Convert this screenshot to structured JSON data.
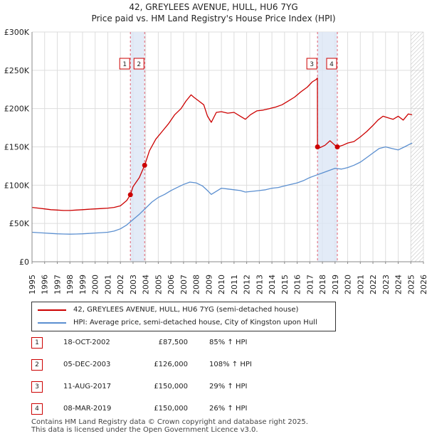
{
  "title_line1": "42, GREYLEES AVENUE, HULL, HU6 7YG",
  "title_line2": "Price paid vs. HM Land Registry's House Price Index (HPI)",
  "colors": {
    "property_line": "#cc0000",
    "hpi_line": "#5b8fd0",
    "shade": "#dce6f5",
    "marker_dash": "#e06070",
    "grid": "#dddddd",
    "badge_border": "#cc0000"
  },
  "chart_data": {
    "type": "line",
    "title": "Price paid vs. HM Land Registry's House Price Index (HPI)",
    "xlim": [
      1995,
      2026
    ],
    "ylim": [
      0,
      300000
    ],
    "y_ticks": [
      0,
      50000,
      100000,
      150000,
      200000,
      250000,
      300000
    ],
    "y_tick_labels": [
      "£0",
      "£50K",
      "£100K",
      "£150K",
      "£200K",
      "£250K",
      "£300K"
    ],
    "x_ticks": [
      1995,
      1996,
      1997,
      1998,
      1999,
      2000,
      2001,
      2002,
      2003,
      2004,
      2005,
      2006,
      2007,
      2008,
      2009,
      2010,
      2011,
      2012,
      2013,
      2014,
      2015,
      2016,
      2017,
      2018,
      2019,
      2020,
      2021,
      2022,
      2023,
      2024,
      2025,
      2026
    ],
    "x_tick_labels": [
      "1995",
      "1996",
      "1997",
      "1998",
      "1999",
      "2000",
      "2001",
      "2002",
      "2003",
      "2004",
      "2005",
      "2006",
      "2007",
      "2008",
      "2009",
      "2010",
      "2011",
      "2012",
      "2013",
      "2014",
      "2015",
      "2016",
      "2017",
      "2018",
      "2019",
      "2020",
      "2021",
      "2022",
      "2023",
      "2024",
      "2025",
      "2026"
    ],
    "shaded_ranges": [
      [
        2002.8,
        2003.92
      ],
      [
        2017.61,
        2019.18
      ]
    ],
    "future_hatch_start": 2025.0,
    "series": [
      {
        "name": "42, GREYLEES AVENUE, HULL, HU6 7YG (semi-detached house)",
        "color": "#cc0000",
        "x": [
          1995,
          1995.5,
          1996,
          1996.5,
          1997,
          1997.5,
          1998,
          1998.5,
          1999,
          1999.5,
          2000,
          2000.5,
          2001,
          2001.5,
          2002,
          2002.5,
          2002.79,
          2003,
          2003.5,
          2003.92,
          2004.3,
          2004.8,
          2005.3,
          2005.8,
          2006.3,
          2006.8,
          2007.2,
          2007.6,
          2007.8,
          2008.2,
          2008.6,
          2008.9,
          2009.2,
          2009.6,
          2010,
          2010.5,
          2011,
          2011.5,
          2011.9,
          2012.3,
          2012.8,
          2013.3,
          2013.8,
          2014.3,
          2014.8,
          2015.3,
          2015.8,
          2016.3,
          2016.8,
          2017.2,
          2017.5,
          2017.6,
          2017.61,
          2017.8,
          2018.2,
          2018.6,
          2019.0,
          2019.18,
          2019.6,
          2020,
          2020.5,
          2021,
          2021.5,
          2022,
          2022.4,
          2022.8,
          2023.2,
          2023.6,
          2024,
          2024.4,
          2024.8,
          2025.1
        ],
        "y": [
          71000,
          70000,
          69000,
          68000,
          67500,
          67000,
          67000,
          67500,
          68000,
          68500,
          69000,
          69500,
          70000,
          71000,
          73000,
          80000,
          87500,
          98000,
          110000,
          126000,
          145000,
          160000,
          170000,
          180000,
          192000,
          200000,
          210000,
          218000,
          215000,
          210000,
          205000,
          190000,
          182000,
          195000,
          196000,
          194000,
          195000,
          190000,
          186000,
          192000,
          197000,
          198000,
          200000,
          202000,
          205000,
          210000,
          215000,
          222000,
          228000,
          235000,
          238000,
          240000,
          150000,
          149000,
          152000,
          158000,
          152000,
          150000,
          152000,
          155000,
          157000,
          163000,
          170000,
          178000,
          185000,
          190000,
          188000,
          186000,
          190000,
          185000,
          193000,
          192000
        ]
      },
      {
        "name": "HPI: Average price, semi-detached house, City of Kingston upon Hull",
        "color": "#5b8fd0",
        "x": [
          1995,
          1995.5,
          1996,
          1996.5,
          1997,
          1997.5,
          1998,
          1998.5,
          1999,
          1999.5,
          2000,
          2000.5,
          2001,
          2001.5,
          2002,
          2002.5,
          2003,
          2003.5,
          2004,
          2004.5,
          2005,
          2005.5,
          2006,
          2006.5,
          2007,
          2007.5,
          2008,
          2008.5,
          2008.9,
          2009.2,
          2009.6,
          2010,
          2010.5,
          2011,
          2011.5,
          2011.9,
          2012.5,
          2013,
          2013.5,
          2014,
          2014.5,
          2015,
          2015.5,
          2016,
          2016.5,
          2017,
          2017.5,
          2018,
          2018.5,
          2019,
          2019.5,
          2020,
          2020.5,
          2021,
          2021.5,
          2022,
          2022.5,
          2023,
          2023.5,
          2024,
          2024.5,
          2025.1
        ],
        "y": [
          38500,
          38000,
          37500,
          37000,
          36500,
          36200,
          36000,
          36200,
          36500,
          37000,
          37500,
          38000,
          38500,
          40000,
          43000,
          48000,
          55000,
          62000,
          70000,
          78000,
          84000,
          88000,
          93000,
          97000,
          101000,
          104000,
          103000,
          99000,
          93000,
          88000,
          92000,
          96000,
          95000,
          94000,
          93000,
          91000,
          92000,
          93000,
          94000,
          96000,
          97000,
          99000,
          101000,
          103000,
          106000,
          110000,
          113000,
          116000,
          119000,
          122000,
          121000,
          123000,
          126000,
          130000,
          136000,
          142000,
          148000,
          150000,
          148000,
          146000,
          150000,
          155000
        ]
      }
    ],
    "sales": [
      {
        "num": "1",
        "x": 2002.79,
        "y": 87500
      },
      {
        "num": "2",
        "x": 2003.92,
        "y": 126000
      },
      {
        "num": "3",
        "x": 2017.61,
        "y": 150000
      },
      {
        "num": "4",
        "x": 2019.18,
        "y": 150000
      }
    ]
  },
  "legend": [
    {
      "label": "42, GREYLEES AVENUE, HULL, HU6 7YG (semi-detached house)",
      "color": "#cc0000"
    },
    {
      "label": "HPI: Average price, semi-detached house, City of Kingston upon Hull",
      "color": "#5b8fd0"
    }
  ],
  "sales_table": [
    {
      "num": "1",
      "date": "18-OCT-2002",
      "price": "£87,500",
      "delta": "85% ↑ HPI"
    },
    {
      "num": "2",
      "date": "05-DEC-2003",
      "price": "£126,000",
      "delta": "108% ↑ HPI"
    },
    {
      "num": "3",
      "date": "11-AUG-2017",
      "price": "£150,000",
      "delta": "29% ↑ HPI"
    },
    {
      "num": "4",
      "date": "08-MAR-2019",
      "price": "£150,000",
      "delta": "26% ↑ HPI"
    }
  ],
  "footer_line1": "Contains HM Land Registry data © Crown copyright and database right 2025.",
  "footer_line2": "This data is licensed under the Open Government Licence v3.0."
}
